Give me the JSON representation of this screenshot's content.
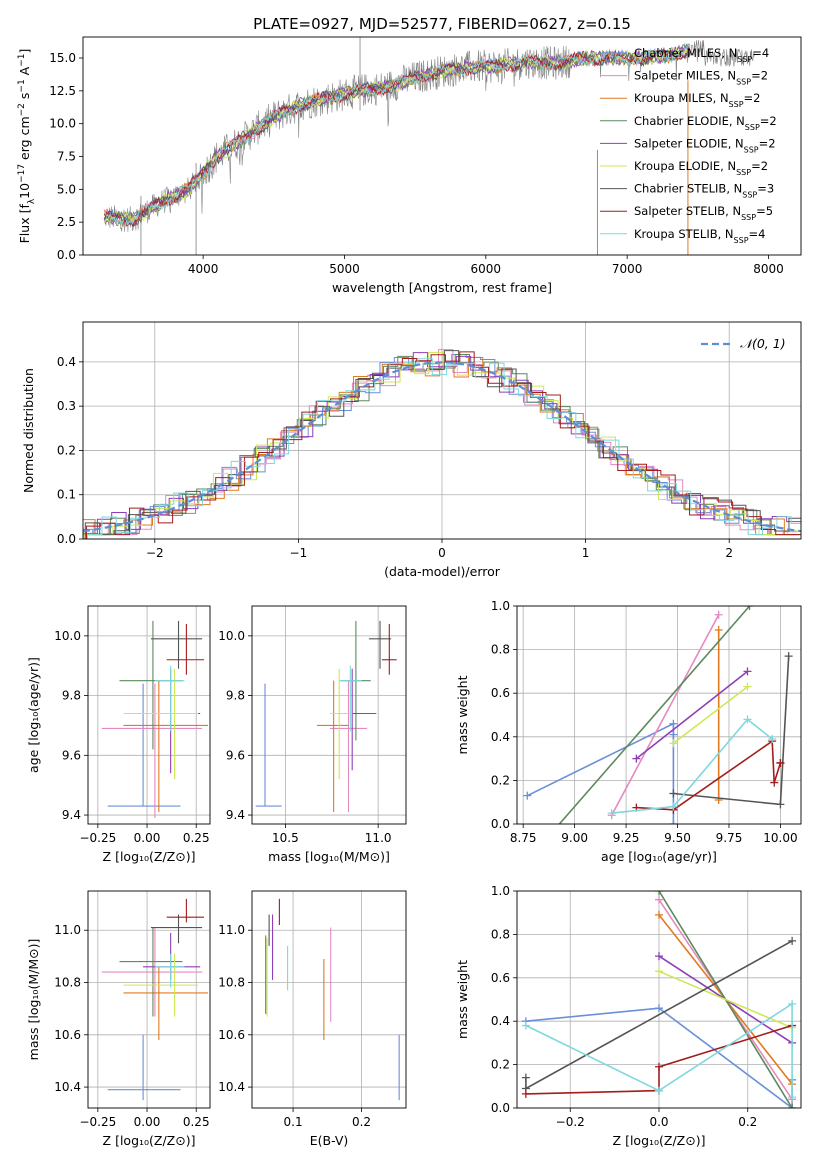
{
  "colors": {
    "chabrier_miles": "#6a8fd8",
    "salpeter_miles": "#e58ac0",
    "kroupa_miles": "#e07a20",
    "chabrier_elodie": "#5b8a5e",
    "salpeter_elodie": "#8e3fb5",
    "kroupa_elodie": "#cde855",
    "chabrier_stelib": "#555555",
    "salpeter_stelib": "#a51c1c",
    "kroupa_stelib": "#7ed8dd",
    "gauss": "#5a8fd6"
  },
  "chart_data": [
    {
      "id": "spectrum",
      "type": "line",
      "title": "PLATE=0927, MJD=52577, FIBERID=0627, z=0.15",
      "xlabel": "wavelength [Angstrom, rest frame]",
      "ylabel_parts": [
        "Flux [f",
        "λ",
        "10",
        "−17",
        " erg cm",
        "−2",
        " s",
        "−1",
        " A",
        "−1",
        "]"
      ],
      "xlim": [
        3150,
        8230
      ],
      "ylim": [
        0,
        16.6
      ],
      "xticks": [
        4000,
        5000,
        6000,
        7000,
        8000
      ],
      "yticks": [
        0.0,
        2.5,
        5.0,
        7.5,
        10.0,
        12.5,
        15.0
      ],
      "ytick_labels": [
        "0.0",
        "2.5",
        "5.0",
        "7.5",
        "10.0",
        "12.5",
        "15.0"
      ],
      "continuum": {
        "x": [
          3300,
          3500,
          3700,
          3900,
          4100,
          4300,
          4500,
          4700,
          4900,
          5100,
          5300,
          5500,
          5700,
          5900,
          6100,
          6300,
          6500,
          6700,
          6900,
          7100,
          7300,
          7500
        ],
        "y": [
          2.9,
          2.7,
          4.0,
          5.0,
          7.5,
          9.0,
          10.5,
          11.5,
          12.0,
          12.5,
          12.8,
          13.5,
          14.0,
          14.3,
          14.4,
          14.7,
          14.6,
          15.0,
          15.0,
          15.0,
          15.2,
          15.8
        ]
      },
      "spikes": [
        {
          "x": 3560,
          "lo": 0.0,
          "hi": 4.5
        },
        {
          "x": 5110,
          "lo": 11.0,
          "hi": 16.6
        },
        {
          "x": 3950,
          "lo": 0.0,
          "hi": 7.0
        }
      ],
      "legend_location": "upper right",
      "legend": [
        {
          "key": "chabrier_miles",
          "label": "Chabrier MILES, N",
          "sub": "SSP",
          "tail": "=4"
        },
        {
          "key": "salpeter_miles",
          "label": "Salpeter MILES, N",
          "sub": "SSP",
          "tail": "=2"
        },
        {
          "key": "kroupa_miles",
          "label": "Kroupa MILES, N",
          "sub": "SSP",
          "tail": "=2"
        },
        {
          "key": "chabrier_elodie",
          "label": "Chabrier ELODIE, N",
          "sub": "SSP",
          "tail": "=2"
        },
        {
          "key": "salpeter_elodie",
          "label": "Salpeter ELODIE, N",
          "sub": "SSP",
          "tail": "=2"
        },
        {
          "key": "kroupa_elodie",
          "label": "Kroupa ELODIE, N",
          "sub": "SSP",
          "tail": "=2"
        },
        {
          "key": "chabrier_stelib",
          "label": "Chabrier STELIB, N",
          "sub": "SSP",
          "tail": "=3"
        },
        {
          "key": "salpeter_stelib",
          "label": "Salpeter STELIB, N",
          "sub": "SSP",
          "tail": "=5"
        },
        {
          "key": "kroupa_stelib",
          "label": "Kroupa STELIB, N",
          "sub": "SSP",
          "tail": "=4"
        }
      ]
    },
    {
      "id": "residuals",
      "type": "histogram",
      "xlabel": "(data-model)/error",
      "ylabel": "Normed distribution",
      "xlim": [
        -2.5,
        2.5
      ],
      "ylim": [
        0,
        0.49
      ],
      "xticks": [
        -2,
        -1,
        0,
        1,
        2
      ],
      "xtick_labels": [
        "−2",
        "−1",
        "0",
        "1",
        "2"
      ],
      "yticks": [
        0.0,
        0.1,
        0.2,
        0.3,
        0.4
      ],
      "ytick_labels": [
        "0.0",
        "0.1",
        "0.2",
        "0.3",
        "0.4"
      ],
      "bin_width": 0.1,
      "bin_start": -2.5,
      "legend": "𝒩(0, 1)",
      "gauss": {
        "mu": 0,
        "sigma": 1
      }
    },
    {
      "id": "age_vs_Z",
      "type": "errorbar",
      "xlabel": "Z [log₁₀(Z/Z⊙)]",
      "ylabel": "age  [log₁₀(age/yr)]",
      "xlim": [
        -0.3,
        0.32
      ],
      "ylim": [
        9.37,
        10.1
      ],
      "xticks": [
        -0.25,
        0.0,
        0.25
      ],
      "xtick_labels": [
        "−0.25",
        "0.00",
        "0.25"
      ],
      "yticks": [
        9.4,
        9.6,
        9.8,
        10.0
      ],
      "ytick_labels": [
        "9.4",
        "9.6",
        "9.8",
        "10.0"
      ],
      "points": [
        {
          "key": "chabrier_miles",
          "x": -0.02,
          "xerr": [
            0.18,
            0.19
          ],
          "y": 9.43,
          "yerr": [
            0.0,
            0.41
          ]
        },
        {
          "key": "salpeter_miles",
          "x": 0.04,
          "xerr": [
            0.27,
            0.24
          ],
          "y": 9.69,
          "yerr": [
            0.3,
            0.15
          ]
        },
        {
          "key": "kroupa_miles",
          "x": 0.06,
          "xerr": [
            0.18,
            0.25
          ],
          "y": 9.7,
          "yerr": [
            0.29,
            0.15
          ]
        },
        {
          "key": "chabrier_elodie",
          "x": 0.03,
          "xerr": [
            0.17,
            0.15
          ],
          "y": 9.85,
          "yerr": [
            0.23,
            0.2
          ]
        },
        {
          "key": "salpeter_elodie",
          "x": 0.12,
          "xerr": [
            0.14,
            0.15
          ],
          "y": 9.74,
          "yerr": [
            0.2,
            0.15
          ]
        },
        {
          "key": "kroupa_elodie",
          "x": 0.14,
          "xerr": [
            0.26,
            0.12
          ],
          "y": 9.74,
          "yerr": [
            0.22,
            0.15
          ]
        },
        {
          "key": "chabrier_stelib",
          "x": 0.16,
          "xerr": [
            0.14,
            0.12
          ],
          "y": 9.99,
          "yerr": [
            0.1,
            0.06
          ]
        },
        {
          "key": "salpeter_stelib",
          "x": 0.2,
          "xerr": [
            0.1,
            0.09
          ],
          "y": 9.92,
          "yerr": [
            0.05,
            0.12
          ]
        },
        {
          "key": "kroupa_stelib",
          "x": 0.12,
          "xerr": [
            0.08,
            0.07
          ],
          "y": 9.85,
          "yerr": [
            0.17,
            0.05
          ]
        }
      ]
    },
    {
      "id": "age_vs_mass",
      "type": "errorbar",
      "xlabel": "mass [log₁₀(M/M⊙)]",
      "ylabel": "",
      "xlim": [
        10.32,
        11.15
      ],
      "ylim": [
        9.37,
        10.1
      ],
      "xticks": [
        10.5,
        11.0
      ],
      "xtick_labels": [
        "10.5",
        "11.0"
      ],
      "yticks": [
        9.4,
        9.6,
        9.8,
        10.0
      ],
      "ytick_labels": [
        "9.4",
        "9.6",
        "9.8",
        "10.0"
      ],
      "points": [
        {
          "key": "chabrier_miles",
          "x": 10.39,
          "xerr": [
            0.05,
            0.09
          ],
          "y": 9.43,
          "yerr": [
            0.0,
            0.41
          ]
        },
        {
          "key": "salpeter_miles",
          "x": 10.84,
          "xerr": [
            0.1,
            0.1
          ],
          "y": 9.69,
          "yerr": [
            0.28,
            0.16
          ]
        },
        {
          "key": "kroupa_miles",
          "x": 10.76,
          "xerr": [
            0.09,
            0.08
          ],
          "y": 9.7,
          "yerr": [
            0.29,
            0.15
          ]
        },
        {
          "key": "chabrier_elodie",
          "x": 10.88,
          "xerr": [
            0.08,
            0.08
          ],
          "y": 9.85,
          "yerr": [
            0.2,
            0.2
          ]
        },
        {
          "key": "salpeter_elodie",
          "x": 10.86,
          "xerr": [
            0.03,
            0.13
          ],
          "y": 9.74,
          "yerr": [
            0.19,
            0.15
          ]
        },
        {
          "key": "kroupa_elodie",
          "x": 10.79,
          "xerr": [
            0.05,
            0.07
          ],
          "y": 9.74,
          "yerr": [
            0.22,
            0.15
          ]
        },
        {
          "key": "chabrier_stelib",
          "x": 11.01,
          "xerr": [
            0.06,
            0.06
          ],
          "y": 9.99,
          "yerr": [
            0.1,
            0.06
          ]
        },
        {
          "key": "salpeter_stelib",
          "x": 11.06,
          "xerr": [
            0.04,
            0.04
          ],
          "y": 9.92,
          "yerr": [
            0.05,
            0.12
          ]
        },
        {
          "key": "kroupa_stelib",
          "x": 10.85,
          "xerr": [
            0.06,
            0.06
          ],
          "y": 9.85,
          "yerr": [
            0.17,
            0.05
          ]
        }
      ]
    },
    {
      "id": "weight_vs_age",
      "type": "line",
      "xlabel": "age  [log₁₀(age/yr)]",
      "ylabel": "mass weight",
      "xlim": [
        8.72,
        10.1
      ],
      "ylim": [
        0,
        1.0
      ],
      "xticks": [
        8.75,
        9.0,
        9.25,
        9.5,
        9.75,
        10.0
      ],
      "xtick_labels": [
        "8.75",
        "9.00",
        "9.25",
        "9.50",
        "9.75",
        "10.00"
      ],
      "yticks": [
        0.0,
        0.2,
        0.4,
        0.6,
        0.8,
        1.0
      ],
      "ytick_labels": [
        "0.0",
        "0.2",
        "0.4",
        "0.6",
        "0.8",
        "1.0"
      ],
      "series": [
        {
          "key": "chabrier_miles",
          "x": [
            8.77,
            9.48,
            9.48,
            9.48
          ],
          "y": [
            0.13,
            0.46,
            0.0,
            0.41
          ]
        },
        {
          "key": "salpeter_miles",
          "x": [
            9.18,
            9.7
          ],
          "y": [
            0.04,
            0.96
          ]
        },
        {
          "key": "kroupa_miles",
          "x": [
            9.7,
            9.7
          ],
          "y": [
            0.11,
            0.89
          ]
        },
        {
          "key": "chabrier_elodie",
          "x": [
            8.88,
            9.85
          ],
          "y": [
            -0.05,
            1.0
          ]
        },
        {
          "key": "salpeter_elodie",
          "x": [
            9.3,
            9.84
          ],
          "y": [
            0.3,
            0.7
          ]
        },
        {
          "key": "kroupa_elodie",
          "x": [
            9.48,
            9.84
          ],
          "y": [
            0.37,
            0.63
          ]
        },
        {
          "key": "chabrier_stelib",
          "x": [
            9.48,
            10.0,
            10.04
          ],
          "y": [
            0.14,
            0.09,
            0.77
          ]
        },
        {
          "key": "salpeter_stelib",
          "x": [
            9.3,
            9.48,
            9.96,
            9.97,
            10.0,
            10.0
          ],
          "y": [
            0.075,
            0.065,
            0.38,
            0.19,
            0.28,
            0.28
          ]
        },
        {
          "key": "kroupa_stelib",
          "x": [
            9.18,
            9.48,
            9.84,
            9.96
          ],
          "y": [
            0.05,
            0.08,
            0.48,
            0.39
          ]
        }
      ]
    },
    {
      "id": "mass_vs_Z",
      "type": "errorbar",
      "xlabel": "Z [log₁₀(Z/Z⊙)]",
      "ylabel": "mass [log₁₀(M/M⊙)]",
      "xlim": [
        -0.3,
        0.32
      ],
      "ylim": [
        10.32,
        11.15
      ],
      "xticks": [
        -0.25,
        0.0,
        0.25
      ],
      "xtick_labels": [
        "−0.25",
        "0.00",
        "0.25"
      ],
      "yticks": [
        10.4,
        10.6,
        10.8,
        11.0
      ],
      "ytick_labels": [
        "10.4",
        "10.6",
        "10.8",
        "11.0"
      ],
      "points": [
        {
          "key": "chabrier_miles",
          "x": -0.02,
          "xerr": [
            0.18,
            0.19
          ],
          "y": 10.39,
          "yerr": [
            0.04,
            0.21
          ]
        },
        {
          "key": "salpeter_miles",
          "x": 0.04,
          "xerr": [
            0.27,
            0.24
          ],
          "y": 10.84,
          "yerr": [
            0.17,
            0.17
          ]
        },
        {
          "key": "kroupa_miles",
          "x": 0.06,
          "xerr": [
            0.18,
            0.25
          ],
          "y": 10.76,
          "yerr": [
            0.18,
            0.1
          ]
        },
        {
          "key": "chabrier_elodie",
          "x": 0.03,
          "xerr": [
            0.17,
            0.15
          ],
          "y": 10.88,
          "yerr": [
            0.21,
            0.13
          ]
        },
        {
          "key": "salpeter_elodie",
          "x": 0.12,
          "xerr": [
            0.14,
            0.15
          ],
          "y": 10.86,
          "yerr": [
            0.05,
            0.13
          ]
        },
        {
          "key": "kroupa_elodie",
          "x": 0.14,
          "xerr": [
            0.26,
            0.12
          ],
          "y": 10.79,
          "yerr": [
            0.12,
            0.12
          ]
        },
        {
          "key": "chabrier_stelib",
          "x": 0.16,
          "xerr": [
            0.14,
            0.12
          ],
          "y": 11.01,
          "yerr": [
            0.06,
            0.05
          ]
        },
        {
          "key": "salpeter_stelib",
          "x": 0.2,
          "xerr": [
            0.1,
            0.09
          ],
          "y": 11.05,
          "yerr": [
            0.02,
            0.07
          ]
        },
        {
          "key": "kroupa_stelib",
          "x": 0.12,
          "xerr": [
            0.08,
            0.07
          ],
          "y": 10.86,
          "yerr": [
            0.08,
            0.05
          ]
        }
      ]
    },
    {
      "id": "mass_vs_ebv",
      "type": "errorbar",
      "xlabel": "E(B-V)",
      "ylabel": "",
      "xlim": [
        0.04,
        0.265
      ],
      "ylim": [
        10.32,
        11.15
      ],
      "xticks": [
        0.1,
        0.2
      ],
      "xtick_labels": [
        "0.1",
        "0.2"
      ],
      "yticks": [
        10.4,
        10.6,
        10.8,
        11.0
      ],
      "ytick_labels": [
        "10.4",
        "10.6",
        "10.8",
        "11.0"
      ],
      "points": [
        {
          "key": "chabrier_miles",
          "x": 0.255,
          "y": 10.39,
          "yerr": [
            0.04,
            0.21
          ]
        },
        {
          "key": "salpeter_miles",
          "x": 0.155,
          "y": 10.84,
          "yerr": [
            0.19,
            0.17
          ]
        },
        {
          "key": "kroupa_miles",
          "x": 0.145,
          "y": 10.76,
          "yerr": [
            0.18,
            0.13
          ]
        },
        {
          "key": "chabrier_elodie",
          "x": 0.06,
          "y": 10.88,
          "yerr": [
            0.2,
            0.1
          ]
        },
        {
          "key": "salpeter_elodie",
          "x": 0.07,
          "y": 10.86,
          "yerr": [
            0.05,
            0.2
          ]
        },
        {
          "key": "kroupa_elodie",
          "x": 0.062,
          "y": 10.79,
          "yerr": [
            0.12,
            0.18
          ]
        },
        {
          "key": "chabrier_stelib",
          "x": 0.065,
          "y": 11.0,
          "yerr": [
            0.06,
            0.06
          ]
        },
        {
          "key": "salpeter_stelib",
          "x": 0.08,
          "y": 11.05,
          "yerr": [
            0.03,
            0.07
          ]
        },
        {
          "key": "kroupa_stelib",
          "x": 0.092,
          "y": 10.86,
          "yerr": [
            0.09,
            0.08
          ]
        }
      ]
    },
    {
      "id": "weight_vs_Z",
      "type": "line",
      "xlabel": "Z [log₁₀(Z/Z⊙)]",
      "ylabel": "mass weight",
      "xlim": [
        -0.32,
        0.32
      ],
      "ylim": [
        0,
        1.0
      ],
      "xticks": [
        -0.2,
        0.0,
        0.2
      ],
      "xtick_labels": [
        "−0.2",
        "0.0",
        "0.2"
      ],
      "yticks": [
        0.0,
        0.2,
        0.4,
        0.6,
        0.8,
        1.0
      ],
      "ytick_labels": [
        "0.0",
        "0.2",
        "0.4",
        "0.6",
        "0.8",
        "1.0"
      ],
      "series": [
        {
          "key": "chabrier_miles",
          "x": [
            -0.3,
            0.0,
            0.3,
            0.3
          ],
          "y": [
            0.4,
            0.46,
            0.0,
            0.13
          ]
        },
        {
          "key": "salpeter_miles",
          "x": [
            0.0,
            0.3
          ],
          "y": [
            0.96,
            0.04
          ]
        },
        {
          "key": "kroupa_miles",
          "x": [
            0.0,
            0.3
          ],
          "y": [
            0.89,
            0.11
          ]
        },
        {
          "key": "chabrier_elodie",
          "x": [
            0.0,
            0.3
          ],
          "y": [
            1.0,
            0.0
          ]
        },
        {
          "key": "salpeter_elodie",
          "x": [
            0.0,
            0.3
          ],
          "y": [
            0.7,
            0.3
          ]
        },
        {
          "key": "kroupa_elodie",
          "x": [
            0.0,
            0.3
          ],
          "y": [
            0.63,
            0.37
          ]
        },
        {
          "key": "chabrier_stelib",
          "x": [
            -0.3,
            -0.3,
            0.3
          ],
          "y": [
            0.14,
            0.09,
            0.77
          ]
        },
        {
          "key": "salpeter_stelib",
          "x": [
            -0.3,
            0.0,
            0.0,
            0.3
          ],
          "y": [
            0.065,
            0.08,
            0.19,
            0.38
          ]
        },
        {
          "key": "kroupa_stelib",
          "x": [
            -0.3,
            0.0,
            0.3,
            0.3
          ],
          "y": [
            0.38,
            0.08,
            0.48,
            0.05
          ]
        }
      ]
    }
  ]
}
